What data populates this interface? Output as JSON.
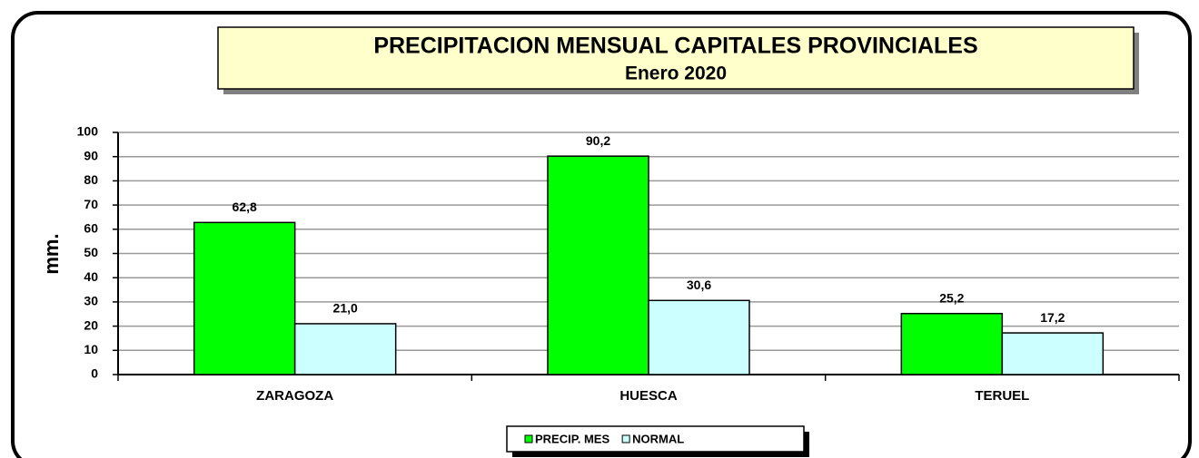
{
  "chart_data": {
    "type": "bar",
    "title": "PRECIPITACION MENSUAL CAPITALES PROVINCIALES",
    "subtitle": "Enero 2020",
    "ylabel": "mm.",
    "categories": [
      "ZARAGOZA",
      "HUESCA",
      "TERUEL"
    ],
    "series": [
      {
        "name": "PRECIP. MES",
        "color": "#00ff00",
        "values": [
          62.8,
          90.2,
          25.2
        ],
        "value_labels": [
          "62,8",
          "90,2",
          "25,2"
        ]
      },
      {
        "name": "NORMAL",
        "color": "#ccffff",
        "values": [
          21.0,
          30.6,
          17.2
        ],
        "value_labels": [
          "21,0",
          "30,6",
          "17,2"
        ]
      }
    ],
    "ylim": [
      0,
      100
    ],
    "yticks": [
      0,
      10,
      20,
      30,
      40,
      50,
      60,
      70,
      80,
      90,
      100
    ],
    "grid": true,
    "legend": "bottom"
  }
}
